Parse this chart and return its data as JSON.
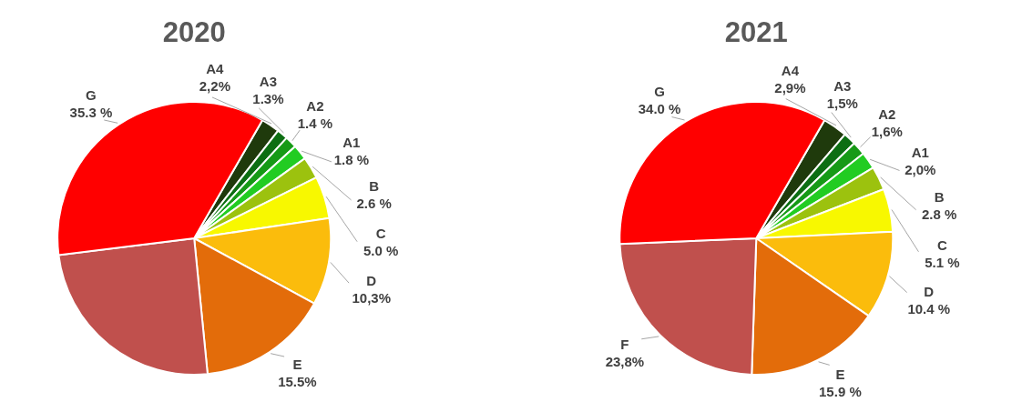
{
  "chart_data": [
    {
      "type": "pie",
      "title": "2020",
      "categories": [
        "A4",
        "A3",
        "A2",
        "A1",
        "B",
        "C",
        "D",
        "E",
        null,
        "G"
      ],
      "values": [
        2.2,
        1.3,
        1.4,
        1.8,
        2.6,
        5.0,
        10.3,
        15.5,
        24.6,
        35.3
      ],
      "colors": [
        "#1f3a0c",
        "#0c6e12",
        "#169a16",
        "#22cc22",
        "#9cc20e",
        "#f8f800",
        "#fbbc0c",
        "#e36c0a",
        "#c0504d",
        "#ff0000"
      ],
      "value_labels": [
        "2,2%",
        "1.3%",
        "1.4 %",
        "1.8 %",
        "2.6 %",
        "5.0 %",
        "10,3%",
        "15.5%",
        null,
        "35.3 %"
      ]
    },
    {
      "type": "pie",
      "title": "2021",
      "categories": [
        "A4",
        "A3",
        "A2",
        "A1",
        "B",
        "C",
        "D",
        "E",
        "F",
        "G"
      ],
      "values": [
        2.9,
        1.5,
        1.6,
        2.0,
        2.8,
        5.1,
        10.4,
        15.9,
        23.8,
        34.0
      ],
      "colors": [
        "#1f3a0c",
        "#0c6e12",
        "#169a16",
        "#22cc22",
        "#9cc20e",
        "#f8f800",
        "#fbbc0c",
        "#e36c0a",
        "#c0504d",
        "#ff0000"
      ],
      "value_labels": [
        "2,9%",
        "1,5%",
        "1,6%",
        "2,0%",
        "2.8 %",
        "5.1 %",
        "10.4 %",
        "15.9 %",
        "23,8%",
        "34.0 %"
      ]
    }
  ]
}
